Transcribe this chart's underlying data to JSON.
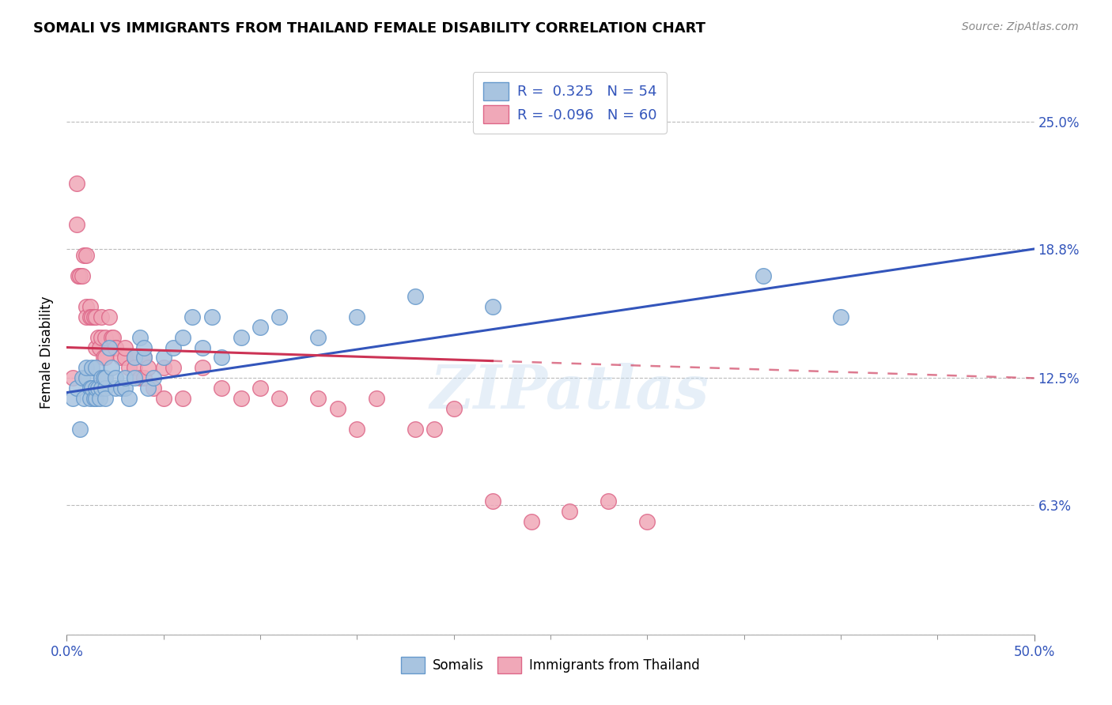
{
  "title": "SOMALI VS IMMIGRANTS FROM THAILAND FEMALE DISABILITY CORRELATION CHART",
  "source": "Source: ZipAtlas.com",
  "ylabel": "Female Disability",
  "ytick_positions": [
    0.0,
    0.063,
    0.125,
    0.188,
    0.25
  ],
  "ytick_labels": [
    "",
    "6.3%",
    "12.5%",
    "18.8%",
    "25.0%"
  ],
  "xmin": 0.0,
  "xmax": 0.5,
  "ymin": 0.0,
  "ymax": 0.275,
  "legend_label_blue": "R =  0.325   N = 54",
  "legend_label_pink": "R = -0.096   N = 60",
  "legend_series_blue": "Somalis",
  "legend_series_pink": "Immigrants from Thailand",
  "blue_color": "#a8c4e0",
  "pink_color": "#f0a8b8",
  "blue_edge": "#6699cc",
  "pink_edge": "#dd6688",
  "trend_blue": "#3355bb",
  "trend_pink": "#cc3355",
  "trend_blue_start_y": 0.118,
  "trend_blue_end_y": 0.188,
  "trend_pink_start_y": 0.14,
  "trend_pink_end_y": 0.125,
  "trend_pink_solid_end_x": 0.22,
  "watermark": "ZIPatlas",
  "background_color": "#ffffff",
  "grid_color": "#bbbbbb",
  "blue_scatter_x": [
    0.003,
    0.005,
    0.007,
    0.008,
    0.009,
    0.01,
    0.01,
    0.012,
    0.012,
    0.013,
    0.013,
    0.014,
    0.015,
    0.015,
    0.015,
    0.016,
    0.017,
    0.018,
    0.018,
    0.019,
    0.02,
    0.02,
    0.02,
    0.022,
    0.023,
    0.025,
    0.025,
    0.028,
    0.03,
    0.03,
    0.032,
    0.035,
    0.035,
    0.038,
    0.04,
    0.04,
    0.042,
    0.045,
    0.05,
    0.055,
    0.06,
    0.065,
    0.07,
    0.075,
    0.08,
    0.09,
    0.1,
    0.11,
    0.13,
    0.15,
    0.18,
    0.22,
    0.36,
    0.4
  ],
  "blue_scatter_y": [
    0.115,
    0.12,
    0.1,
    0.125,
    0.115,
    0.125,
    0.13,
    0.12,
    0.115,
    0.13,
    0.12,
    0.115,
    0.115,
    0.12,
    0.13,
    0.12,
    0.115,
    0.125,
    0.12,
    0.125,
    0.12,
    0.115,
    0.125,
    0.14,
    0.13,
    0.12,
    0.125,
    0.12,
    0.12,
    0.125,
    0.115,
    0.135,
    0.125,
    0.145,
    0.135,
    0.14,
    0.12,
    0.125,
    0.135,
    0.14,
    0.145,
    0.155,
    0.14,
    0.155,
    0.135,
    0.145,
    0.15,
    0.155,
    0.145,
    0.155,
    0.165,
    0.16,
    0.175,
    0.155
  ],
  "pink_scatter_x": [
    0.003,
    0.005,
    0.005,
    0.006,
    0.007,
    0.008,
    0.009,
    0.01,
    0.01,
    0.01,
    0.012,
    0.012,
    0.013,
    0.014,
    0.015,
    0.015,
    0.016,
    0.017,
    0.018,
    0.018,
    0.019,
    0.02,
    0.02,
    0.022,
    0.023,
    0.024,
    0.025,
    0.025,
    0.028,
    0.03,
    0.03,
    0.032,
    0.035,
    0.035,
    0.038,
    0.04,
    0.04,
    0.042,
    0.045,
    0.05,
    0.05,
    0.055,
    0.06,
    0.07,
    0.08,
    0.09,
    0.1,
    0.11,
    0.13,
    0.14,
    0.15,
    0.16,
    0.18,
    0.19,
    0.2,
    0.22,
    0.24,
    0.26,
    0.28,
    0.3
  ],
  "pink_scatter_y": [
    0.125,
    0.2,
    0.22,
    0.175,
    0.175,
    0.175,
    0.185,
    0.16,
    0.155,
    0.185,
    0.16,
    0.155,
    0.155,
    0.155,
    0.14,
    0.155,
    0.145,
    0.14,
    0.155,
    0.145,
    0.135,
    0.145,
    0.135,
    0.155,
    0.145,
    0.145,
    0.14,
    0.14,
    0.135,
    0.135,
    0.14,
    0.13,
    0.135,
    0.13,
    0.125,
    0.135,
    0.125,
    0.13,
    0.12,
    0.13,
    0.115,
    0.13,
    0.115,
    0.13,
    0.12,
    0.115,
    0.12,
    0.115,
    0.115,
    0.11,
    0.1,
    0.115,
    0.1,
    0.1,
    0.11,
    0.065,
    0.055,
    0.06,
    0.065,
    0.055
  ]
}
